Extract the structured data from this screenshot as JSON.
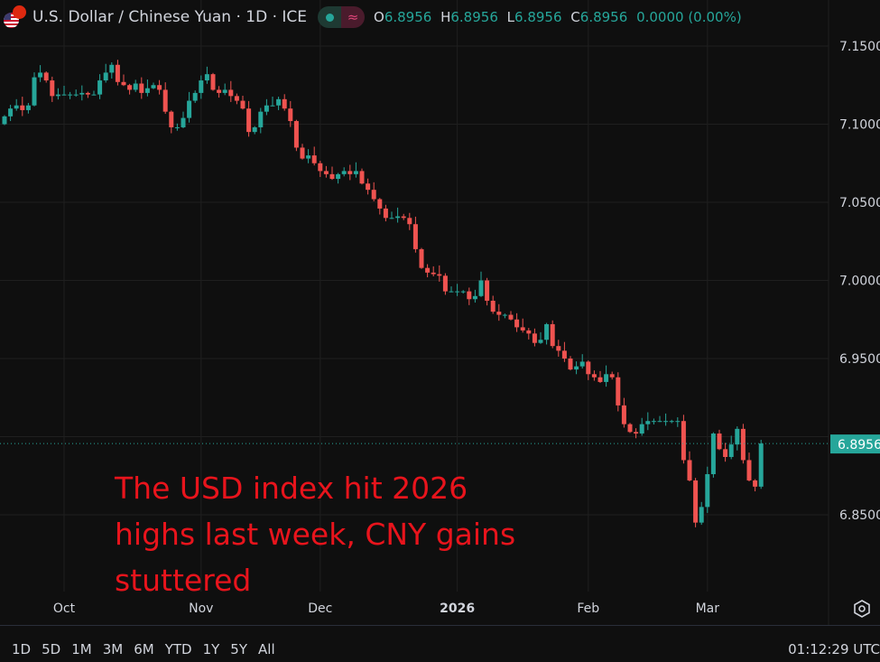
{
  "header": {
    "symbol_title": "U.S. Dollar / Chinese Yuan · 1D · ICE",
    "status_icons": [
      "market-open-dot-icon",
      "approx-icon"
    ],
    "ohlc": {
      "o_label": "O",
      "o": "6.8956",
      "h_label": "H",
      "h": "6.8956",
      "l_label": "L",
      "l": "6.8956",
      "c_label": "C",
      "c": "6.8956",
      "change": "0.0000 (0.00%)"
    }
  },
  "annotation": {
    "lines": [
      "The USD index hit 2026",
      "highs last week, CNY gains",
      "stuttered"
    ],
    "color": "#e8141c"
  },
  "colors": {
    "up": "#26a69a",
    "down": "#ef5350",
    "background": "#0f0f0f",
    "grid": "#1f1f1f"
  },
  "chart_data": {
    "type": "candlestick",
    "title": "U.S. Dollar / Chinese Yuan · 1D · ICE",
    "y_ticks": [
      "7.1500",
      "7.1000",
      "7.0500",
      "7.0000",
      "6.9500",
      "6.8500"
    ],
    "y_tick_values": [
      7.15,
      7.1,
      7.05,
      7.0,
      6.95,
      6.85
    ],
    "ylim": [
      6.85,
      7.15
    ],
    "x_ticks": [
      {
        "label": "Oct",
        "index": 10
      },
      {
        "label": "Nov",
        "index": 33
      },
      {
        "label": "Dec",
        "index": 53
      },
      {
        "label": "2026",
        "index": 76
      },
      {
        "label": "Feb",
        "index": 98
      },
      {
        "label": "Mar",
        "index": 118
      }
    ],
    "last_price": "6.8956",
    "last_price_value": 6.8956,
    "grid": true,
    "open_first": 7.1,
    "closes": [
      7.105,
      7.11,
      7.112,
      7.109,
      7.112,
      7.13,
      7.133,
      7.128,
      7.118,
      7.119,
      7.119,
      7.119,
      7.119,
      7.12,
      7.119,
      7.119,
      7.128,
      7.133,
      7.138,
      7.127,
      7.125,
      7.122,
      7.126,
      7.12,
      7.123,
      7.125,
      7.122,
      7.108,
      7.098,
      7.098,
      7.104,
      7.115,
      7.12,
      7.128,
      7.132,
      7.122,
      7.12,
      7.122,
      7.118,
      7.115,
      7.11,
      7.095,
      7.098,
      7.108,
      7.112,
      7.112,
      7.116,
      7.11,
      7.102,
      7.085,
      7.078,
      7.08,
      7.075,
      7.07,
      7.068,
      7.065,
      7.068,
      7.07,
      7.068,
      7.07,
      7.062,
      7.058,
      7.052,
      7.046,
      7.04,
      7.04,
      7.041,
      7.04,
      7.036,
      7.02,
      7.008,
      7.005,
      7.004,
      7.003,
      6.993,
      6.993,
      6.993,
      6.993,
      6.988,
      6.99,
      7.0,
      6.987,
      6.98,
      6.978,
      6.978,
      6.975,
      6.97,
      6.968,
      6.966,
      6.96,
      6.962,
      6.972,
      6.958,
      6.955,
      6.95,
      6.943,
      6.945,
      6.948,
      6.94,
      6.938,
      6.935,
      6.94,
      6.938,
      6.92,
      6.908,
      6.903,
      6.902,
      6.908,
      6.91,
      6.91,
      6.91,
      6.91,
      6.91,
      6.91,
      6.885,
      6.872,
      6.845,
      6.855,
      6.876,
      6.902,
      6.892,
      6.887,
      6.895,
      6.905,
      6.885,
      6.872,
      6.868,
      6.8956
    ]
  },
  "time_axis": {
    "settings_icon": "gear-icon"
  },
  "bottom": {
    "ranges": [
      "1D",
      "5D",
      "1M",
      "3M",
      "6M",
      "YTD",
      "1Y",
      "5Y",
      "All"
    ],
    "clock": "01:12:29 UTC"
  }
}
